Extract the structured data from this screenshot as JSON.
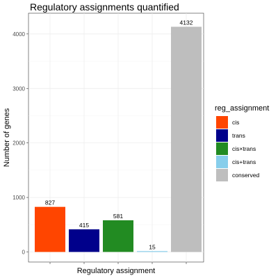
{
  "chart_data": {
    "type": "bar",
    "title": "Regulatory assignments quantified",
    "xlabel": "Regulatory assignment",
    "ylabel": "Number of genes",
    "categories": [
      "cis",
      "trans",
      "cis×trans",
      "cis+trans",
      "conserved"
    ],
    "values": [
      827,
      415,
      581,
      15,
      4132
    ],
    "colors": [
      "#ff4500",
      "#00008b",
      "#228b22",
      "#87ceeb",
      "#bebebe"
    ],
    "ylim": [
      0,
      4330
    ],
    "yticks": [
      0,
      1000,
      2000,
      3000,
      4000
    ],
    "x_tick_labels_shown": false,
    "grid": true,
    "legend": {
      "title": "reg_assignment",
      "position": "right",
      "entries": [
        "cis",
        "trans",
        "cis×trans",
        "cis+trans",
        "conserved"
      ]
    }
  }
}
